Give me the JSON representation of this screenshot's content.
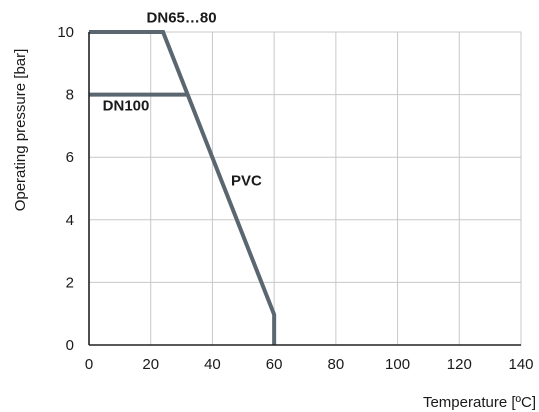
{
  "chart_data": {
    "type": "line",
    "xlabel": "Temperature [ºC]",
    "ylabel": "Operating pressure [bar]",
    "xlim": [
      0,
      140
    ],
    "ylim": [
      0,
      10
    ],
    "xticks": [
      0,
      20,
      40,
      60,
      80,
      100,
      120,
      140
    ],
    "yticks": [
      0,
      2,
      4,
      6,
      8,
      10
    ],
    "grid": true,
    "line_color": "#5b6770",
    "series": [
      {
        "name": "DN65…80",
        "points": [
          [
            0,
            10
          ],
          [
            24,
            10
          ],
          [
            60,
            0.97
          ],
          [
            60,
            0
          ]
        ]
      },
      {
        "name": "DN100",
        "points": [
          [
            0,
            8
          ],
          [
            31.6,
            8
          ]
        ]
      }
    ],
    "annotations": [
      {
        "text": "DN65…80",
        "x": 30,
        "y": 10.3
      },
      {
        "text": "DN100",
        "x": 12,
        "y": 7.5
      },
      {
        "text": "PVC",
        "x": 51,
        "y": 5.1
      }
    ]
  }
}
